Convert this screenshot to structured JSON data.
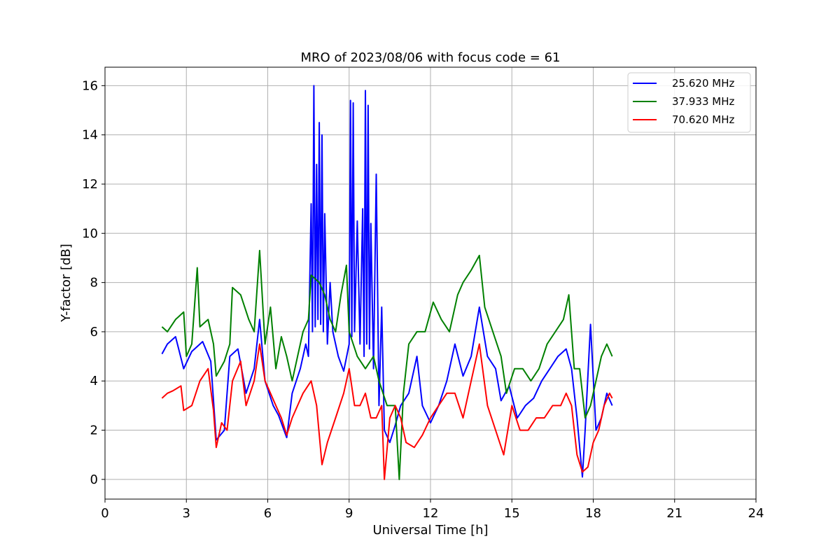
{
  "chart_data": {
    "type": "line",
    "title": "MRO of 2023/08/06 with focus code = 61",
    "xlabel": "Universal Time [h]",
    "ylabel": "Y-factor [dB]",
    "xlim": [
      0,
      24
    ],
    "ylim": [
      -0.8,
      16.75
    ],
    "xticks": [
      0,
      3,
      6,
      9,
      12,
      15,
      18,
      21,
      24
    ],
    "yticks": [
      0,
      2,
      4,
      6,
      8,
      10,
      12,
      14,
      16
    ],
    "grid": true,
    "legend_position": "top-right",
    "series": [
      {
        "name": "25.620 MHz",
        "color": "#0000ff",
        "data": [
          [
            2.1,
            5.1
          ],
          [
            2.3,
            5.5
          ],
          [
            2.6,
            5.8
          ],
          [
            2.9,
            4.5
          ],
          [
            3.2,
            5.2
          ],
          [
            3.6,
            5.6
          ],
          [
            3.9,
            4.8
          ],
          [
            4.1,
            1.6
          ],
          [
            4.4,
            2.0
          ],
          [
            4.6,
            5.0
          ],
          [
            4.9,
            5.3
          ],
          [
            5.2,
            3.5
          ],
          [
            5.5,
            4.5
          ],
          [
            5.7,
            6.5
          ],
          [
            5.9,
            4.0
          ],
          [
            6.2,
            3.0
          ],
          [
            6.4,
            2.6
          ],
          [
            6.7,
            1.7
          ],
          [
            6.9,
            3.5
          ],
          [
            7.2,
            4.5
          ],
          [
            7.4,
            5.5
          ],
          [
            7.5,
            5.0
          ],
          [
            7.6,
            11.2
          ],
          [
            7.65,
            6.0
          ],
          [
            7.7,
            16.0
          ],
          [
            7.75,
            6.2
          ],
          [
            7.8,
            12.8
          ],
          [
            7.85,
            6.5
          ],
          [
            7.9,
            14.5
          ],
          [
            7.95,
            6.3
          ],
          [
            8.0,
            14.0
          ],
          [
            8.05,
            6.0
          ],
          [
            8.1,
            10.8
          ],
          [
            8.2,
            5.5
          ],
          [
            8.3,
            8.0
          ],
          [
            8.4,
            6.0
          ],
          [
            8.6,
            5.0
          ],
          [
            8.8,
            4.4
          ],
          [
            9.0,
            5.5
          ],
          [
            9.05,
            15.4
          ],
          [
            9.1,
            5.8
          ],
          [
            9.15,
            15.3
          ],
          [
            9.2,
            6.0
          ],
          [
            9.3,
            10.5
          ],
          [
            9.4,
            5.5
          ],
          [
            9.5,
            11.0
          ],
          [
            9.55,
            5.0
          ],
          [
            9.6,
            15.8
          ],
          [
            9.65,
            5.5
          ],
          [
            9.7,
            15.2
          ],
          [
            9.75,
            5.3
          ],
          [
            9.8,
            10.4
          ],
          [
            9.9,
            4.5
          ],
          [
            10.0,
            12.4
          ],
          [
            10.1,
            3.0
          ],
          [
            10.2,
            7.0
          ],
          [
            10.3,
            2.0
          ],
          [
            10.5,
            1.5
          ],
          [
            10.7,
            2.2
          ],
          [
            10.9,
            3.0
          ],
          [
            11.2,
            3.5
          ],
          [
            11.5,
            5.0
          ],
          [
            11.7,
            3.0
          ],
          [
            12.0,
            2.3
          ],
          [
            12.3,
            3.0
          ],
          [
            12.6,
            4.0
          ],
          [
            12.9,
            5.5
          ],
          [
            13.2,
            4.2
          ],
          [
            13.5,
            5.0
          ],
          [
            13.8,
            7.0
          ],
          [
            14.1,
            5.0
          ],
          [
            14.4,
            4.5
          ],
          [
            14.6,
            3.2
          ],
          [
            14.9,
            3.8
          ],
          [
            15.2,
            2.5
          ],
          [
            15.5,
            3.0
          ],
          [
            15.8,
            3.3
          ],
          [
            16.1,
            4.0
          ],
          [
            16.4,
            4.5
          ],
          [
            16.7,
            5.0
          ],
          [
            17.0,
            5.3
          ],
          [
            17.2,
            4.5
          ],
          [
            17.4,
            2.5
          ],
          [
            17.6,
            0.1
          ],
          [
            17.7,
            2.0
          ],
          [
            17.9,
            6.3
          ],
          [
            18.1,
            2.0
          ],
          [
            18.3,
            2.5
          ],
          [
            18.5,
            3.5
          ],
          [
            18.7,
            3.0
          ]
        ]
      },
      {
        "name": "37.933 MHz",
        "color": "#008000",
        "data": [
          [
            2.1,
            6.2
          ],
          [
            2.3,
            6.0
          ],
          [
            2.6,
            6.5
          ],
          [
            2.9,
            6.8
          ],
          [
            3.0,
            5.0
          ],
          [
            3.2,
            5.5
          ],
          [
            3.4,
            8.6
          ],
          [
            3.5,
            6.2
          ],
          [
            3.8,
            6.5
          ],
          [
            4.0,
            5.5
          ],
          [
            4.1,
            4.2
          ],
          [
            4.4,
            4.8
          ],
          [
            4.6,
            5.5
          ],
          [
            4.7,
            7.8
          ],
          [
            5.0,
            7.5
          ],
          [
            5.3,
            6.5
          ],
          [
            5.5,
            6.0
          ],
          [
            5.7,
            9.3
          ],
          [
            5.9,
            5.5
          ],
          [
            6.1,
            7.0
          ],
          [
            6.3,
            4.5
          ],
          [
            6.5,
            5.8
          ],
          [
            6.7,
            5.0
          ],
          [
            6.9,
            4.0
          ],
          [
            7.1,
            5.0
          ],
          [
            7.3,
            6.0
          ],
          [
            7.5,
            6.5
          ],
          [
            7.6,
            8.3
          ],
          [
            7.9,
            8.0
          ],
          [
            8.1,
            7.5
          ],
          [
            8.3,
            6.5
          ],
          [
            8.5,
            6.0
          ],
          [
            8.7,
            7.5
          ],
          [
            8.9,
            8.7
          ],
          [
            9.0,
            6.0
          ],
          [
            9.3,
            5.0
          ],
          [
            9.6,
            4.5
          ],
          [
            9.9,
            5.0
          ],
          [
            10.1,
            4.0
          ],
          [
            10.4,
            3.0
          ],
          [
            10.7,
            3.0
          ],
          [
            10.85,
            0.0
          ],
          [
            11.0,
            3.5
          ],
          [
            11.2,
            5.5
          ],
          [
            11.5,
            6.0
          ],
          [
            11.8,
            6.0
          ],
          [
            12.1,
            7.2
          ],
          [
            12.4,
            6.5
          ],
          [
            12.7,
            6.0
          ],
          [
            13.0,
            7.5
          ],
          [
            13.2,
            8.0
          ],
          [
            13.5,
            8.5
          ],
          [
            13.8,
            9.1
          ],
          [
            14.0,
            7.0
          ],
          [
            14.3,
            6.0
          ],
          [
            14.6,
            5.0
          ],
          [
            14.8,
            3.5
          ],
          [
            15.1,
            4.5
          ],
          [
            15.4,
            4.5
          ],
          [
            15.7,
            4.0
          ],
          [
            16.0,
            4.5
          ],
          [
            16.3,
            5.5
          ],
          [
            16.6,
            6.0
          ],
          [
            16.9,
            6.5
          ],
          [
            17.1,
            7.5
          ],
          [
            17.3,
            4.5
          ],
          [
            17.5,
            4.5
          ],
          [
            17.7,
            2.5
          ],
          [
            17.9,
            3.0
          ],
          [
            18.1,
            4.0
          ],
          [
            18.3,
            5.0
          ],
          [
            18.5,
            5.5
          ],
          [
            18.7,
            5.0
          ]
        ]
      },
      {
        "name": "70.620 MHz",
        "color": "#ff0000",
        "data": [
          [
            2.1,
            3.3
          ],
          [
            2.3,
            3.5
          ],
          [
            2.5,
            3.6
          ],
          [
            2.8,
            3.8
          ],
          [
            2.9,
            2.8
          ],
          [
            3.2,
            3.0
          ],
          [
            3.5,
            4.0
          ],
          [
            3.8,
            4.5
          ],
          [
            4.0,
            2.8
          ],
          [
            4.1,
            1.3
          ],
          [
            4.3,
            2.3
          ],
          [
            4.5,
            2.0
          ],
          [
            4.7,
            4.0
          ],
          [
            5.0,
            4.8
          ],
          [
            5.2,
            3.0
          ],
          [
            5.5,
            4.0
          ],
          [
            5.7,
            5.5
          ],
          [
            5.9,
            4.0
          ],
          [
            6.1,
            3.5
          ],
          [
            6.3,
            3.0
          ],
          [
            6.5,
            2.5
          ],
          [
            6.7,
            1.8
          ],
          [
            6.9,
            2.5
          ],
          [
            7.1,
            3.0
          ],
          [
            7.3,
            3.5
          ],
          [
            7.6,
            4.0
          ],
          [
            7.8,
            3.0
          ],
          [
            8.0,
            0.6
          ],
          [
            8.2,
            1.5
          ],
          [
            8.5,
            2.5
          ],
          [
            8.8,
            3.5
          ],
          [
            9.0,
            4.5
          ],
          [
            9.2,
            3.0
          ],
          [
            9.4,
            3.0
          ],
          [
            9.6,
            3.5
          ],
          [
            9.8,
            2.5
          ],
          [
            10.0,
            2.5
          ],
          [
            10.2,
            3.0
          ],
          [
            10.3,
            0.0
          ],
          [
            10.5,
            2.5
          ],
          [
            10.7,
            3.0
          ],
          [
            10.9,
            2.5
          ],
          [
            11.1,
            1.5
          ],
          [
            11.4,
            1.3
          ],
          [
            11.7,
            1.8
          ],
          [
            12.0,
            2.5
          ],
          [
            12.3,
            3.0
          ],
          [
            12.6,
            3.5
          ],
          [
            12.9,
            3.5
          ],
          [
            13.2,
            2.5
          ],
          [
            13.5,
            4.0
          ],
          [
            13.8,
            5.5
          ],
          [
            14.1,
            3.0
          ],
          [
            14.4,
            2.0
          ],
          [
            14.7,
            1.0
          ],
          [
            15.0,
            3.0
          ],
          [
            15.3,
            2.0
          ],
          [
            15.6,
            2.0
          ],
          [
            15.9,
            2.5
          ],
          [
            16.2,
            2.5
          ],
          [
            16.5,
            3.0
          ],
          [
            16.8,
            3.0
          ],
          [
            17.0,
            3.5
          ],
          [
            17.2,
            3.0
          ],
          [
            17.4,
            1.0
          ],
          [
            17.6,
            0.3
          ],
          [
            17.8,
            0.5
          ],
          [
            18.0,
            1.5
          ],
          [
            18.2,
            2.0
          ],
          [
            18.4,
            3.0
          ],
          [
            18.6,
            3.5
          ],
          [
            18.7,
            3.3
          ]
        ]
      }
    ]
  }
}
